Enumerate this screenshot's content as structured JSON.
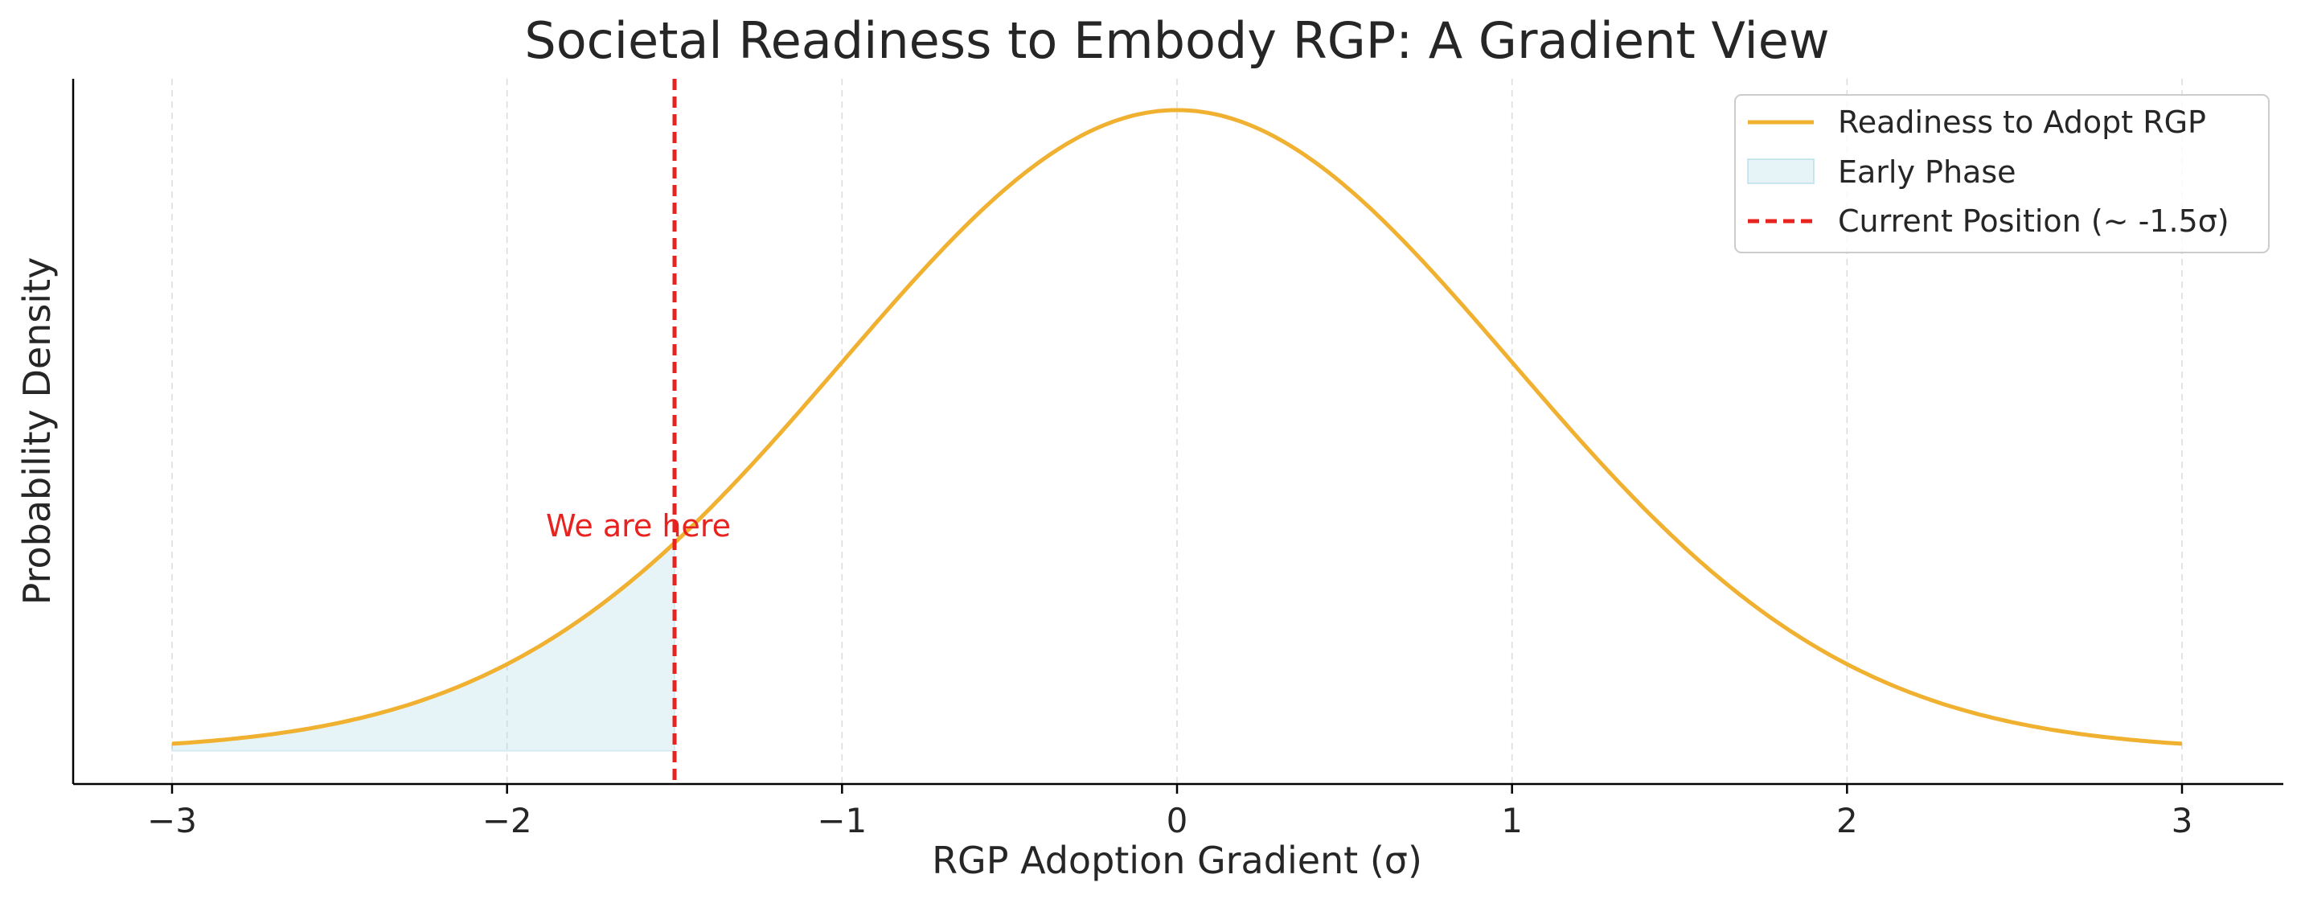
{
  "chart_data": {
    "type": "line",
    "title": "Societal Readiness to Embody RGP: A Gradient View",
    "xlabel": "RGP Adoption Gradient (σ)",
    "ylabel": "Probability Density",
    "xlim": [
      -3.3,
      3.3
    ],
    "ylim": [
      -0.02,
      0.42
    ],
    "xticks": [
      -3,
      -2,
      -1,
      0,
      1,
      2,
      3
    ],
    "xtick_labels": [
      "−3",
      "−2",
      "−1",
      "0",
      "1",
      "2",
      "3"
    ],
    "grid": "vertical dashed",
    "legend_position": "top-right",
    "series": [
      {
        "name": "Readiness to Adopt RGP",
        "kind": "line",
        "color": "#F0B030",
        "x": [
          -3.0,
          -2.75,
          -2.5,
          -2.25,
          -2.0,
          -1.75,
          -1.5,
          -1.25,
          -1.0,
          -0.75,
          -0.5,
          -0.25,
          0.0,
          0.25,
          0.5,
          0.75,
          1.0,
          1.25,
          1.5,
          1.75,
          2.0,
          2.25,
          2.5,
          2.75,
          3.0
        ],
        "y": [
          0.0044,
          0.0091,
          0.0175,
          0.0317,
          0.054,
          0.0863,
          0.1295,
          0.1826,
          0.242,
          0.3011,
          0.3521,
          0.3867,
          0.3989,
          0.3867,
          0.3521,
          0.3011,
          0.242,
          0.1826,
          0.1295,
          0.0863,
          0.054,
          0.0317,
          0.0175,
          0.0091,
          0.0044
        ]
      },
      {
        "name": "Early Phase",
        "kind": "area",
        "color": "#ADD8E6",
        "x_range": [
          -3.0,
          -1.5
        ]
      },
      {
        "name": "Current Position (~ -1.5σ)",
        "kind": "vline",
        "color": "#E8231F",
        "x": -1.5
      }
    ],
    "annotations": [
      {
        "text": "We are here",
        "x": -1.5,
        "y": 0.14,
        "color": "#E8231F"
      }
    ]
  }
}
